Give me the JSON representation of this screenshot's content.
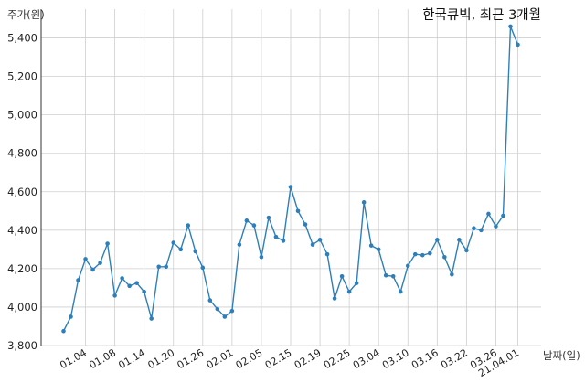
{
  "chart_data": {
    "type": "line",
    "title": "한국큐빅, 최근 3개월",
    "xlabel": "날짜(일)",
    "ylabel": "주가(원)",
    "ylim": [
      3800,
      5550
    ],
    "y_ticks": [
      3800,
      4000,
      4200,
      4400,
      4600,
      4800,
      5000,
      5200,
      5400
    ],
    "y_tick_labels": [
      "3,800",
      "4,000",
      "4,200",
      "4,400",
      "4,600",
      "4,800",
      "5,000",
      "5,200",
      "5,400"
    ],
    "x_tick_labels": [
      "01.04",
      "01.08",
      "01.14",
      "01.20",
      "01.26",
      "02.01",
      "02.05",
      "02.15",
      "02.19",
      "02.25",
      "03.04",
      "03.10",
      "03.16",
      "03.22",
      "03.26",
      "21.04.01"
    ],
    "x_tick_indices": [
      3,
      7,
      11,
      15,
      19,
      23,
      27,
      31,
      35,
      39,
      43,
      47,
      51,
      55,
      59,
      62
    ],
    "grid": true,
    "line_color": "#2e7fb8",
    "series": [
      {
        "values": [
          3875,
          3950,
          4140,
          4250,
          4195,
          4230,
          4330,
          4060,
          4150,
          4110,
          4125,
          4080,
          3940,
          4210,
          4210,
          4335,
          4300,
          4425,
          4290,
          4205,
          4035,
          3990,
          3950,
          3980,
          4325,
          4450,
          4425,
          4260,
          4465,
          4365,
          4345,
          4625,
          4500,
          4430,
          4325,
          4350,
          4275,
          4045,
          4160,
          4080,
          4125,
          4545,
          4320,
          4300,
          4165,
          4160,
          4080,
          4215,
          4275,
          4270,
          4280,
          4350,
          4260,
          4170,
          4350,
          4295,
          4410,
          4400,
          4485,
          4420,
          4475,
          5460,
          5365
        ]
      }
    ]
  }
}
